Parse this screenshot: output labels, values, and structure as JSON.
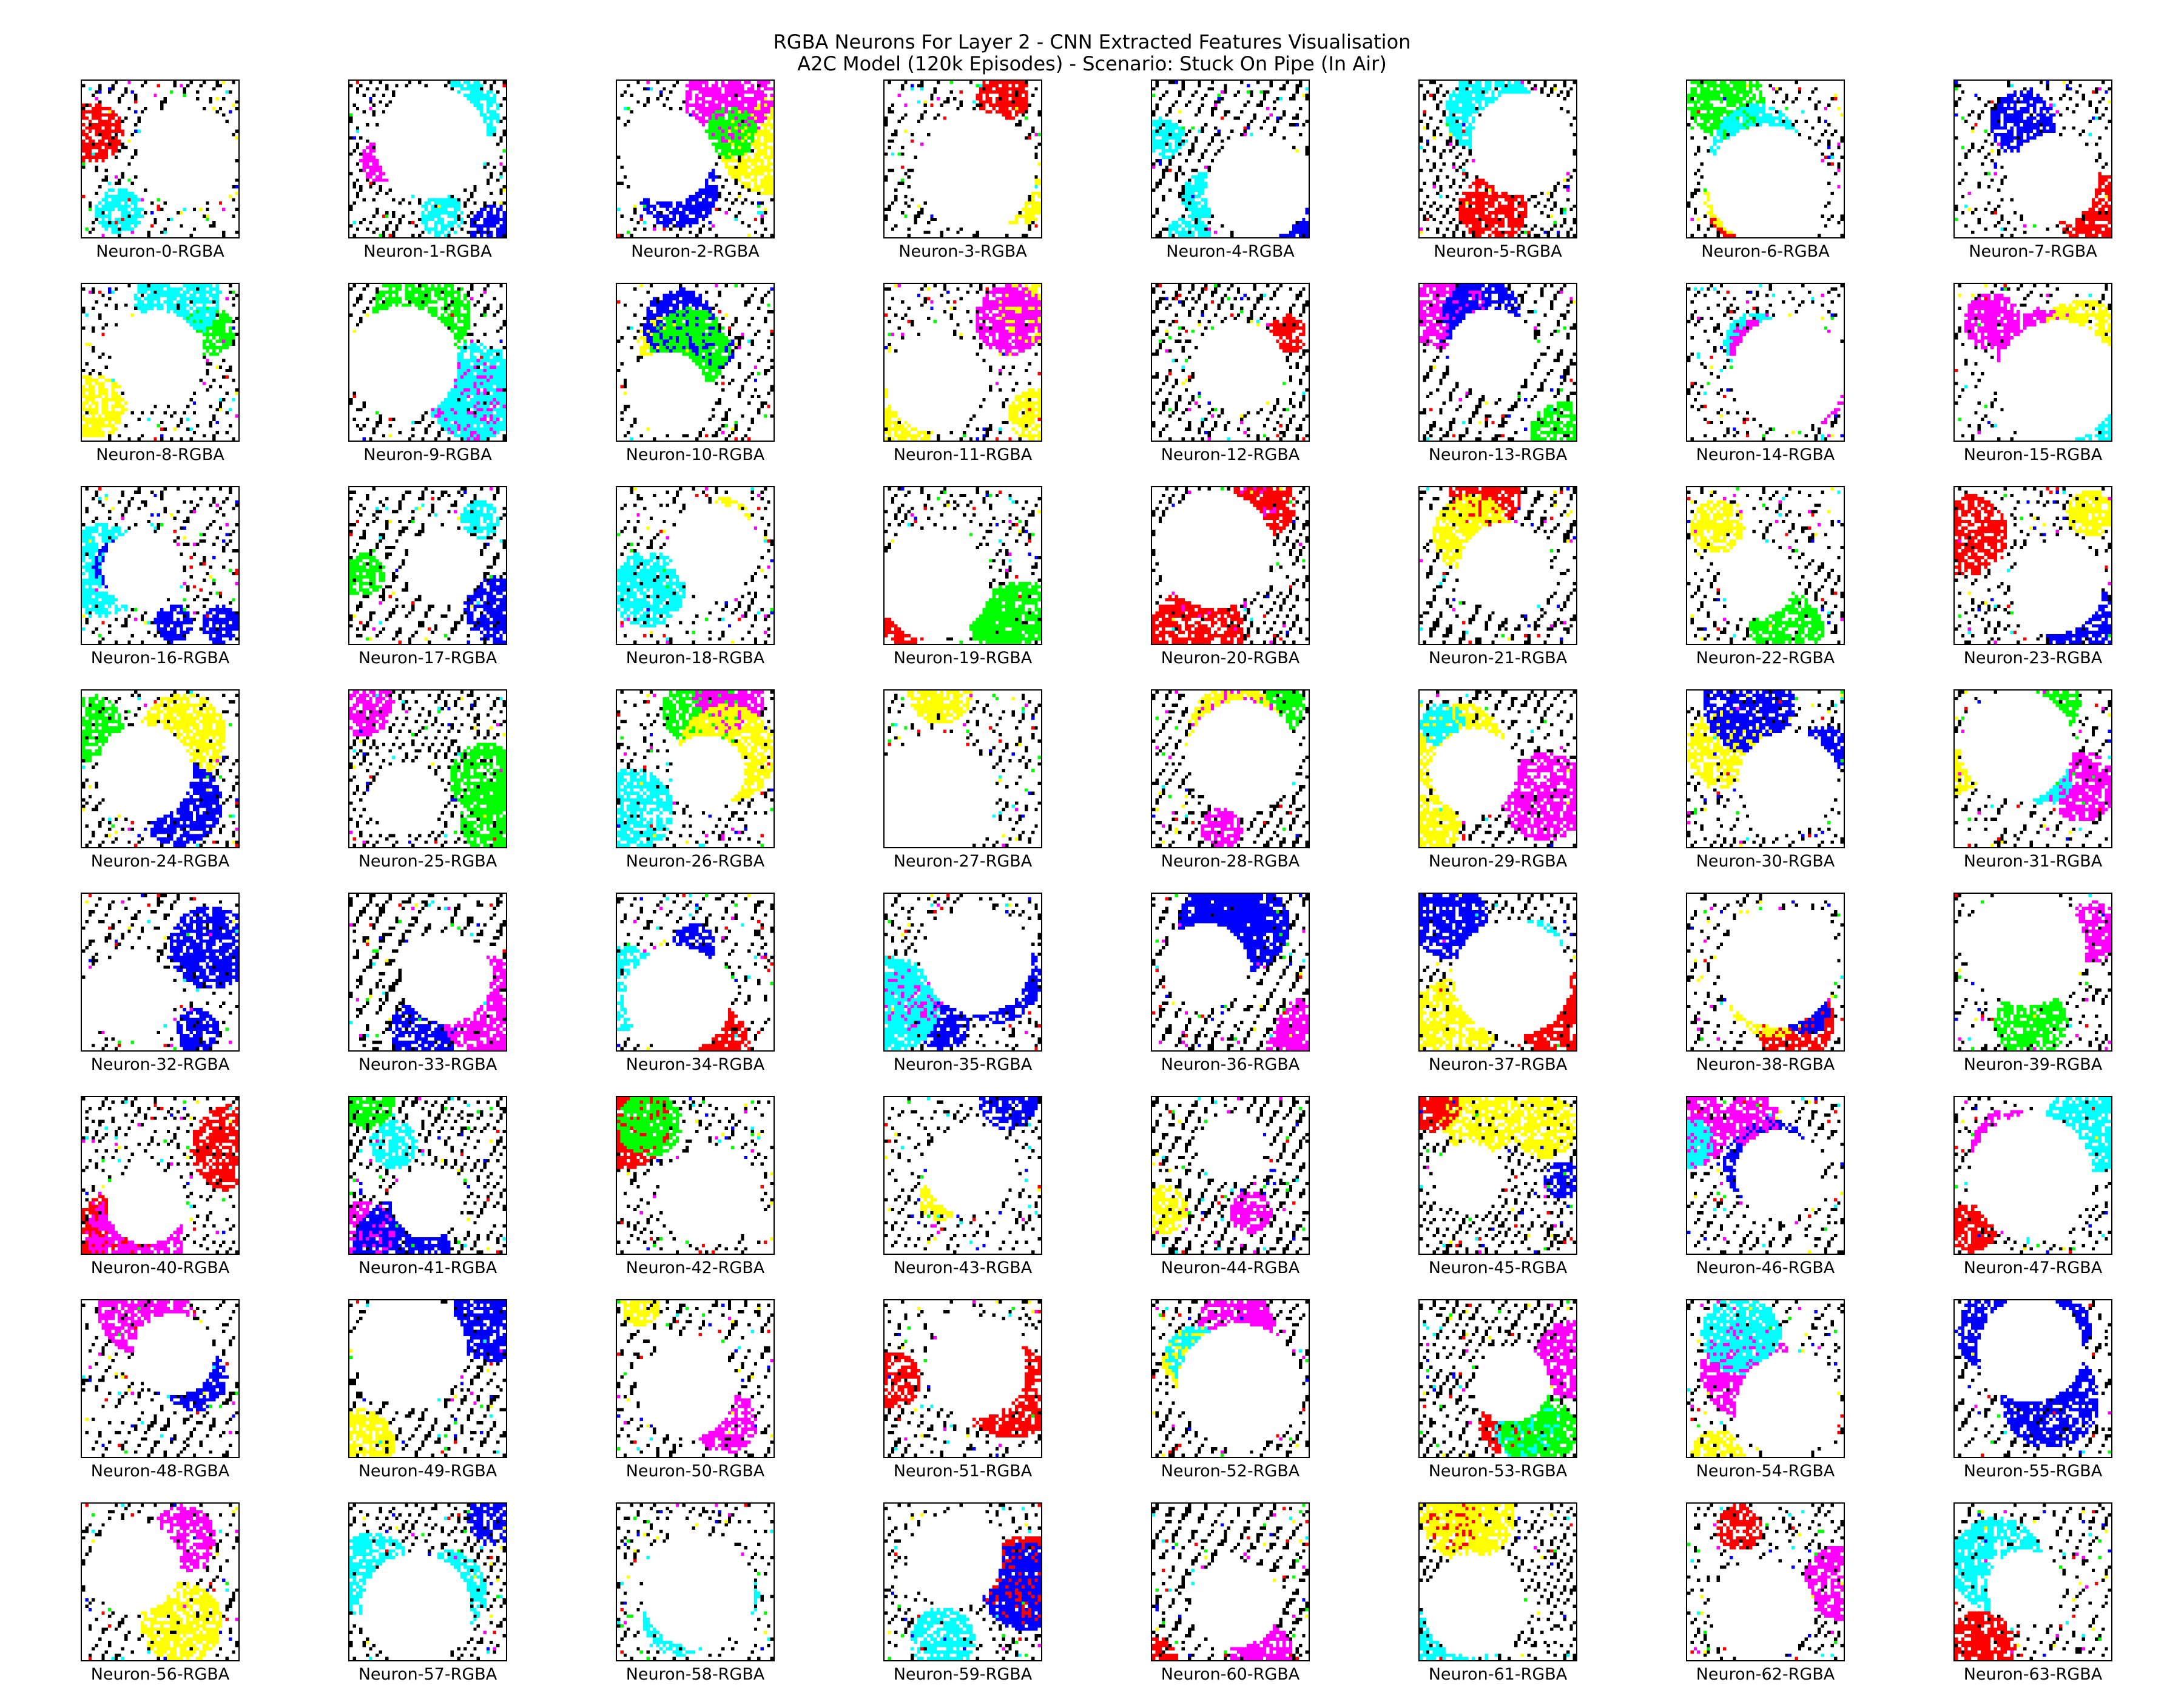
{
  "figure": {
    "title_line_1": "RGBA Neurons For Layer 2 - CNN Extracted Features Visualisation",
    "title_line_2": "A2C Model (120k Episodes) - Scenario: Stuck On Pipe (In Air)"
  },
  "palette": {
    "white": "#ffffff",
    "black": "#000000",
    "blue": "#0000ff",
    "green": "#00ff00",
    "cyan": "#00ffff",
    "magenta": "#ff00ff",
    "red": "#ff0000",
    "yellow": "#ffff00"
  },
  "panels": [
    {
      "label": "Neuron-0-RGBA"
    },
    {
      "label": "Neuron-1-RGBA"
    },
    {
      "label": "Neuron-2-RGBA"
    },
    {
      "label": "Neuron-3-RGBA"
    },
    {
      "label": "Neuron-4-RGBA"
    },
    {
      "label": "Neuron-5-RGBA"
    },
    {
      "label": "Neuron-6-RGBA"
    },
    {
      "label": "Neuron-7-RGBA"
    },
    {
      "label": "Neuron-8-RGBA"
    },
    {
      "label": "Neuron-9-RGBA"
    },
    {
      "label": "Neuron-10-RGBA"
    },
    {
      "label": "Neuron-11-RGBA"
    },
    {
      "label": "Neuron-12-RGBA"
    },
    {
      "label": "Neuron-13-RGBA"
    },
    {
      "label": "Neuron-14-RGBA"
    },
    {
      "label": "Neuron-15-RGBA"
    },
    {
      "label": "Neuron-16-RGBA"
    },
    {
      "label": "Neuron-17-RGBA"
    },
    {
      "label": "Neuron-18-RGBA"
    },
    {
      "label": "Neuron-19-RGBA"
    },
    {
      "label": "Neuron-20-RGBA"
    },
    {
      "label": "Neuron-21-RGBA"
    },
    {
      "label": "Neuron-22-RGBA"
    },
    {
      "label": "Neuron-23-RGBA"
    },
    {
      "label": "Neuron-24-RGBA"
    },
    {
      "label": "Neuron-25-RGBA"
    },
    {
      "label": "Neuron-26-RGBA"
    },
    {
      "label": "Neuron-27-RGBA"
    },
    {
      "label": "Neuron-28-RGBA"
    },
    {
      "label": "Neuron-29-RGBA"
    },
    {
      "label": "Neuron-30-RGBA"
    },
    {
      "label": "Neuron-31-RGBA"
    },
    {
      "label": "Neuron-32-RGBA"
    },
    {
      "label": "Neuron-33-RGBA"
    },
    {
      "label": "Neuron-34-RGBA"
    },
    {
      "label": "Neuron-35-RGBA"
    },
    {
      "label": "Neuron-36-RGBA"
    },
    {
      "label": "Neuron-37-RGBA"
    },
    {
      "label": "Neuron-38-RGBA"
    },
    {
      "label": "Neuron-39-RGBA"
    },
    {
      "label": "Neuron-40-RGBA"
    },
    {
      "label": "Neuron-41-RGBA"
    },
    {
      "label": "Neuron-42-RGBA"
    },
    {
      "label": "Neuron-43-RGBA"
    },
    {
      "label": "Neuron-44-RGBA"
    },
    {
      "label": "Neuron-45-RGBA"
    },
    {
      "label": "Neuron-46-RGBA"
    },
    {
      "label": "Neuron-47-RGBA"
    },
    {
      "label": "Neuron-48-RGBA"
    },
    {
      "label": "Neuron-49-RGBA"
    },
    {
      "label": "Neuron-50-RGBA"
    },
    {
      "label": "Neuron-51-RGBA"
    },
    {
      "label": "Neuron-52-RGBA"
    },
    {
      "label": "Neuron-53-RGBA"
    },
    {
      "label": "Neuron-54-RGBA"
    },
    {
      "label": "Neuron-55-RGBA"
    },
    {
      "label": "Neuron-56-RGBA"
    },
    {
      "label": "Neuron-57-RGBA"
    },
    {
      "label": "Neuron-58-RGBA"
    },
    {
      "label": "Neuron-59-RGBA"
    },
    {
      "label": "Neuron-60-RGBA"
    },
    {
      "label": "Neuron-61-RGBA"
    },
    {
      "label": "Neuron-62-RGBA"
    },
    {
      "label": "Neuron-63-RGBA"
    }
  ]
}
